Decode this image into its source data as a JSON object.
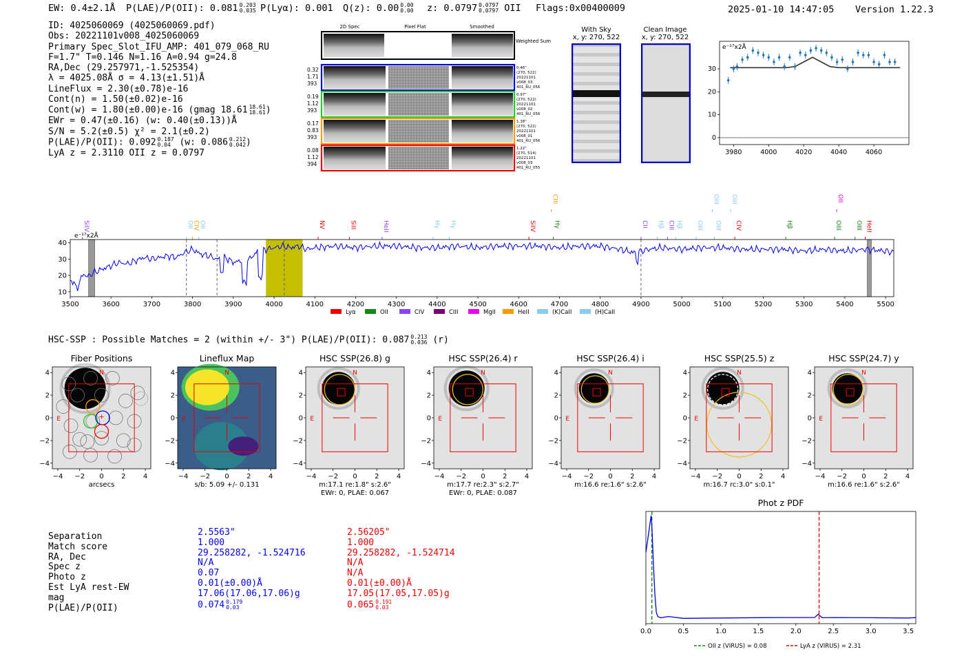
{
  "header": {
    "ew": "EW: 0.4±2.1Å",
    "plae_label": "P(LAE)/P(OII): 0.081",
    "plae_hi": "0.203",
    "plae_lo": "0.035",
    "plya": "P(Lyα): 0.001",
    "qz_label": "Q(z): 0.00",
    "qz_hi": "0.00",
    "qz_lo": "0.00",
    "z_label": "z: 0.0797",
    "z_hi": "0.0797",
    "z_lo": "0.0797",
    "z_line": "OII",
    "flags": "Flags:0x00400009",
    "datetime": "2025-01-10 14:47:05",
    "version": "Version 1.22.3"
  },
  "info": {
    "id": "ID: 4025060069 (4025060069.pdf)",
    "obs": "Obs: 20221101v008_4025060069",
    "primary": "Primary Spec_Slot_IFU_AMP: 401_079_068_RU",
    "fit": "F=1.7\"  T=0.146  N=1.16  A=0.94  g=24.8",
    "radec": "RA,Dec (29.257971,-1.525354)",
    "lambda": "λ = 4025.08Å  σ = 4.13(±1.51)Å",
    "lineflux": "LineFlux = 2.30(±0.78)e-16",
    "cont_n": "Cont(n) = 1.50(±0.02)e-16",
    "cont_w": "Cont(w) = 1.80(±0.00)e-16 (gmag 18.61",
    "gmag_hi": "18.61",
    "gmag_lo": "18.61",
    "ewr": "EWr = 0.47(±0.16) (w: 0.40(±0.13))Å",
    "sn": "S/N = 5.2(±0.5)  χ² = 2.1(±0.2)",
    "plae": "P(LAE)/P(OII): 0.092",
    "plae_hi": "0.187",
    "plae_lo": "0.04",
    "plae_w": "(w: 0.086",
    "plae_w_hi": "0.212",
    "plae_w_lo": "0.042",
    "lyaz": "LyA z = 2.3110   OII z = 0.0797"
  },
  "cutouts": {
    "col_titles": [
      "2D Spec",
      "Pixel Flat",
      "Smoothed"
    ],
    "weighted_sum": "Weighted Sum",
    "rows": [
      {
        "left": [
          "0.32",
          "1.71",
          "393"
        ],
        "right": [
          "0.46\"",
          "(270, 522)",
          "20221101",
          "v008_03",
          "401_RU_056"
        ],
        "color": "#0000dd"
      },
      {
        "left": [
          "0.19",
          "1.12",
          "393"
        ],
        "right": [
          "0.97\"",
          "(270, 522)",
          "20221101",
          "v008_02",
          "401_RU_056"
        ],
        "color": "#22cc22"
      },
      {
        "left": [
          "0.17",
          "0.83",
          "393"
        ],
        "right": [
          "1.38\"",
          "(270, 522)",
          "20221101",
          "v008_01",
          "401_RU_056"
        ],
        "color": "#ff9900"
      },
      {
        "left": [
          "0.08",
          "1.12",
          "394"
        ],
        "right": [
          "1.22\"",
          "(270, 514)",
          "20221101",
          "v008_03",
          "401_RU_055"
        ],
        "color": "#ee0000"
      }
    ],
    "with_sky_title": "With Sky",
    "with_sky_coords": "x, y: 270, 522",
    "clean_title": "Clean Image",
    "clean_coords": "x, y: 270, 522"
  },
  "zoom_chart": {
    "ylabel": "e⁻¹⁷x2Å",
    "x_ticks": [
      "3980",
      "4000",
      "4020",
      "4040",
      "4060"
    ],
    "y_ticks": [
      "0",
      "10",
      "20",
      "30"
    ]
  },
  "spectrum": {
    "ylabel": "e⁻¹⁷x2Å",
    "x_ticks": [
      "3500",
      "3600",
      "3700",
      "3800",
      "3900",
      "4000",
      "4100",
      "4200",
      "4300",
      "4400",
      "4500",
      "4600",
      "4700",
      "4800",
      "4900",
      "5000",
      "5100",
      "5200",
      "5300",
      "5400",
      "5500"
    ],
    "y_ticks": [
      "10",
      "20",
      "30",
      "40"
    ],
    "line_labels": [
      {
        "text": "SiIV",
        "wave": 3530,
        "color": "#8844ff",
        "row": 1
      },
      {
        "text": "OII",
        "wave": 3785,
        "color": "#88ccee",
        "row": 1
      },
      {
        "text": "CIV",
        "wave": 3800,
        "color": "#ff9900",
        "row": 1
      },
      {
        "text": "OII",
        "wave": 3815,
        "color": "#88ccee",
        "row": 1
      },
      {
        "text": "NV",
        "wave": 4108,
        "color": "#ee0000",
        "row": 1
      },
      {
        "text": "SiII",
        "wave": 4185,
        "color": "#ee0000",
        "row": 1
      },
      {
        "text": "HeII",
        "wave": 4265,
        "color": "#8844ff",
        "row": 1
      },
      {
        "text": "Hγ",
        "wave": 4390,
        "color": "#88ccee",
        "row": 1
      },
      {
        "text": "Hγ",
        "wave": 4430,
        "color": "#88ccee",
        "row": 1
      },
      {
        "text": "SiIV",
        "wave": 4625,
        "color": "#ee0000",
        "row": 1
      },
      {
        "text": "CIII",
        "wave": 4680,
        "color": "#ff9900",
        "row": 0
      },
      {
        "text": "Hγ",
        "wave": 4685,
        "color": "#118811",
        "row": 1
      },
      {
        "text": "CII",
        "wave": 4900,
        "color": "#8844ff",
        "row": 1
      },
      {
        "text": "Hβ",
        "wave": 4940,
        "color": "#88ccee",
        "row": 1
      },
      {
        "text": "CIII",
        "wave": 4965,
        "color": "#8844ff",
        "row": 1
      },
      {
        "text": "Hβ",
        "wave": 4985,
        "color": "#88ccee",
        "row": 1
      },
      {
        "text": "OIII",
        "wave": 5035,
        "color": "#88ccee",
        "row": 1
      },
      {
        "text": "OIII",
        "wave": 5075,
        "color": "#88ccee",
        "row": 0
      },
      {
        "text": "OIII",
        "wave": 5080,
        "color": "#88ccee",
        "row": 1
      },
      {
        "text": "OIII",
        "wave": 5120,
        "color": "#88ccee",
        "row": 0
      },
      {
        "text": "CIV",
        "wave": 5130,
        "color": "#ee0000",
        "row": 1
      },
      {
        "text": "Hβ",
        "wave": 5255,
        "color": "#118811",
        "row": 1
      },
      {
        "text": "OII",
        "wave": 5380,
        "color": "#ee00ee",
        "row": 0
      },
      {
        "text": "OIII",
        "wave": 5375,
        "color": "#118811",
        "row": 1
      },
      {
        "text": "OIII",
        "wave": 5425,
        "color": "#118811",
        "row": 1
      },
      {
        "text": "HeII",
        "wave": 5450,
        "color": "#ee0000",
        "row": 1
      }
    ],
    "legend": [
      {
        "label": "Lyα",
        "color": "#ee0000"
      },
      {
        "label": "OII",
        "color": "#118811"
      },
      {
        "label": "CIV",
        "color": "#8844ff"
      },
      {
        "label": "CIII",
        "color": "#770077"
      },
      {
        "label": "MgII",
        "color": "#ee00ee"
      },
      {
        "label": "HeII",
        "color": "#ff9900"
      },
      {
        "label": "(K)CaII",
        "color": "#88ccee"
      },
      {
        "label": "(H)CaII",
        "color": "#88ccee"
      }
    ]
  },
  "hsc": {
    "summary": "HSC-SSP : Possible Matches = 2 (within +/- 3\")  P(LAE)/P(OII): 0.087",
    "summary_hi": "0.213",
    "summary_lo": "0.036",
    "summary_band": "(r)",
    "ticks": [
      "−4",
      "−2",
      "0",
      "2",
      "4"
    ],
    "panels": [
      {
        "title": "Fiber Positions",
        "caption1": "arcsecs",
        "caption2": ""
      },
      {
        "title": "Lineflux Map",
        "caption1": "s/b: 5.09 +/- 0.131",
        "caption2": ""
      },
      {
        "title": "HSC SSP(26.8) g",
        "caption1": "m:17.1   re:1.8\"   s:2.6\"",
        "caption2": "EWr: 0, PLAE: 0.067"
      },
      {
        "title": "HSC SSP(26.4) r",
        "caption1": "m:17.7   re:2.3\"   s:2.7\"",
        "caption2": "EWr: 0, PLAE: 0.087"
      },
      {
        "title": "HSC SSP(26.4) i",
        "caption1": "m:16.6   re:1.6\"   s:2.6\"",
        "caption2": ""
      },
      {
        "title": "HSC SSP(25.5) z",
        "caption1": "m:16.7 rc:3.0\"   s:0.1\"",
        "caption2": ""
      },
      {
        "title": "HSC SSP(24.7) y",
        "caption1": "m:16.6   re:1.6\"   s:2.6\"",
        "caption2": ""
      }
    ],
    "compass_n": "N",
    "compass_e": "E"
  },
  "match_table": {
    "labels": [
      "Separation",
      "Match score",
      "RA, Dec",
      "Spec z",
      "Photo z",
      "Est LyA rest-EW",
      "mag",
      "P(LAE)/P(OII)"
    ],
    "col1": [
      "2.5563\"",
      "1.000",
      "29.258282, -1.524716",
      "N/A",
      "0.07",
      "0.01(±0.00)Å",
      "17.06(17.06,17.06)g",
      "0.074"
    ],
    "col1_hi": "0.179",
    "col1_lo": "0.03",
    "col2": [
      "2.56205\"",
      "1.000",
      "29.258282, -1.524714",
      "N/A",
      "N/A",
      "0.01(±0.00)Å",
      "17.05(17.05,17.05)g",
      "0.065"
    ],
    "col2_hi": "0.191",
    "col2_lo": "0.03"
  },
  "photz": {
    "title": "Phot z PDF",
    "x_ticks": [
      "0.0",
      "0.5",
      "1.0",
      "1.5",
      "2.0",
      "2.5",
      "3.0",
      "3.5"
    ],
    "legend_oii": "OII z (VIRUS) = 0.08",
    "legend_lya": "LyA z (VIRUS) = 2.31"
  },
  "chart_data": [
    {
      "type": "line",
      "title": "",
      "xlabel": "",
      "ylabel": "e⁻¹⁷x2Å",
      "xlim": [
        3500,
        5520
      ],
      "ylim": [
        7,
        42
      ],
      "x": [
        3500,
        3520,
        3540,
        3560,
        3580,
        3600,
        3620,
        3640,
        3660,
        3680,
        3700,
        3720,
        3740,
        3760,
        3780,
        3800,
        3820,
        3840,
        3860,
        3880,
        3900,
        3920,
        3940,
        3960,
        3980,
        4000,
        4020,
        4040,
        4060,
        4080,
        4100,
        4150,
        4200,
        4250,
        4300,
        4350,
        4400,
        4450,
        4500,
        4550,
        4600,
        4650,
        4700,
        4750,
        4800,
        4850,
        4880,
        4900,
        4920,
        4950,
        5000,
        5050,
        5100,
        5150,
        5200,
        5250,
        5300,
        5350,
        5400,
        5450,
        5500,
        5520
      ],
      "y": [
        14,
        16,
        19,
        22,
        24,
        26,
        28,
        27,
        29,
        31,
        30,
        31,
        32,
        31,
        34,
        36,
        33,
        32,
        30,
        31,
        28,
        29,
        30,
        35,
        36,
        37,
        38,
        37,
        38,
        36,
        37,
        38,
        37,
        38,
        38,
        37,
        37,
        38,
        37,
        38,
        38,
        38,
        37,
        38,
        38,
        36,
        34,
        35,
        36,
        37,
        36,
        37,
        37,
        36,
        36,
        36,
        35,
        36,
        35,
        36,
        35,
        34
      ],
      "highlight_range": [
        3980,
        4070
      ],
      "vlines": [
        3785,
        3860,
        4025,
        4900
      ]
    },
    {
      "type": "scatter",
      "title": "",
      "xlabel": "",
      "ylabel": "e⁻¹⁷x2Å",
      "xlim": [
        3972,
        4080
      ],
      "ylim": [
        -3,
        42
      ],
      "x": [
        3977,
        3980,
        3982,
        3985,
        3988,
        3991,
        3994,
        3997,
        4000,
        4003,
        4006,
        4009,
        4012,
        4015,
        4018,
        4021,
        4024,
        4027,
        4030,
        4033,
        4036,
        4039,
        4042,
        4045,
        4048,
        4051,
        4054,
        4057,
        4060,
        4063,
        4066,
        4069,
        4072
      ],
      "y": [
        25,
        30,
        31,
        34,
        35,
        38,
        37,
        36,
        35,
        33,
        35,
        31,
        35,
        31,
        37,
        36,
        38,
        39,
        38,
        37,
        35,
        33,
        34,
        30,
        33,
        37,
        36,
        36,
        33,
        32,
        36,
        33,
        33
      ],
      "model_x": [
        3978,
        4010,
        4015,
        4020,
        4025,
        4030,
        4035,
        4040,
        4075
      ],
      "model_y": [
        30.5,
        30.5,
        31,
        33,
        35,
        33,
        31,
        30.5,
        30.5
      ]
    },
    {
      "type": "line",
      "title": "Phot z PDF",
      "xlabel": "",
      "ylabel": "",
      "xlim": [
        0,
        3.6
      ],
      "ylim": [
        0,
        1
      ],
      "x": [
        0.0,
        0.02,
        0.04,
        0.06,
        0.07,
        0.08,
        0.1,
        0.12,
        0.14,
        0.16,
        0.2,
        0.3,
        0.5,
        1.0,
        1.5,
        2.0,
        2.25,
        2.3,
        2.35,
        2.5,
        3.0,
        3.5,
        3.6
      ],
      "y": [
        0.65,
        0.75,
        0.85,
        0.95,
        1.0,
        0.9,
        0.55,
        0.25,
        0.08,
        0.04,
        0.03,
        0.03,
        0.02,
        0.02,
        0.02,
        0.02,
        0.02,
        0.06,
        0.02,
        0.02,
        0.02,
        0.02,
        0.02
      ],
      "vlines": [
        {
          "x": 0.08,
          "label": "OII z (VIRUS) = 0.08",
          "color": "#118811"
        },
        {
          "x": 2.31,
          "label": "LyA z (VIRUS) = 2.31",
          "color": "#ee0000"
        }
      ]
    }
  ]
}
